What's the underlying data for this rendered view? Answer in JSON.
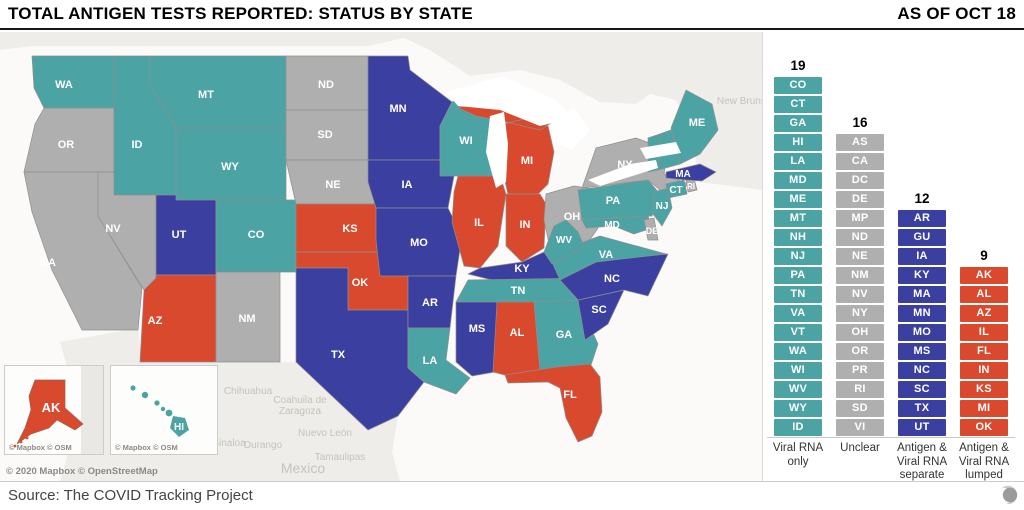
{
  "header": {
    "title": "TOTAL ANTIGEN TESTS REPORTED: STATUS BY STATE",
    "as_of": "AS OF OCT 18"
  },
  "colors": {
    "viral_rna_only": "#4BA3A4",
    "unclear": "#AFAFAF",
    "antigen_viral_separate": "#3B3F9F",
    "antigen_viral_lumped": "#D9492E",
    "water": "#FBFAF8",
    "foreign_land": "#EFEDE9",
    "state_border": "#8f8f8f"
  },
  "legend_columns": [
    {
      "count": "19",
      "label": "Viral RNA only",
      "color_key": "viral_rna_only",
      "states": [
        "CO",
        "CT",
        "GA",
        "HI",
        "LA",
        "MD",
        "ME",
        "MT",
        "NH",
        "NJ",
        "PA",
        "TN",
        "VA",
        "VT",
        "WA",
        "WI",
        "WV",
        "WY",
        "ID"
      ]
    },
    {
      "count": "16",
      "label": "Unclear",
      "color_key": "unclear",
      "states": [
        "AS",
        "CA",
        "DC",
        "DE",
        "MP",
        "ND",
        "NE",
        "NM",
        "NV",
        "NY",
        "OH",
        "OR",
        "PR",
        "RI",
        "SD",
        "VI"
      ]
    },
    {
      "count": "12",
      "label": "Antigen & Viral RNA separate",
      "color_key": "antigen_viral_separate",
      "states": [
        "AR",
        "GU",
        "IA",
        "KY",
        "MA",
        "MN",
        "MO",
        "MS",
        "NC",
        "SC",
        "TX",
        "UT"
      ]
    },
    {
      "count": "9",
      "label": "Antigen & Viral RNA lumped",
      "color_key": "antigen_viral_lumped",
      "states": [
        "AK",
        "AL",
        "AZ",
        "IL",
        "FL",
        "IN",
        "KS",
        "MI",
        "OK"
      ]
    }
  ],
  "map": {
    "attribution": "© 2020 Mapbox © OpenStreetMap",
    "inset_attribution": "© Mapbox © OSM",
    "alaska_label": "AK",
    "hawaii_label": "HI",
    "background_labels": [
      "New Brunsw",
      "Chihuahua",
      "Coahuila de",
      "Zaragoza",
      "Nuevo León",
      "Sinaloa",
      "Durango",
      "Tamaulipas",
      "Mexico"
    ]
  },
  "footer": {
    "source": "Source: The COVID Tracking Project"
  },
  "chart_data": {
    "type": "bar",
    "title": "TOTAL ANTIGEN TESTS REPORTED: STATUS BY STATE",
    "subtitle": "AS OF OCT 18",
    "categories": [
      "Viral RNA only",
      "Unclear",
      "Antigen & Viral RNA separate",
      "Antigen & Viral RNA lumped"
    ],
    "values": [
      19,
      16,
      12,
      9
    ],
    "colors": [
      "#4BA3A4",
      "#AFAFAF",
      "#3B3F9F",
      "#D9492E"
    ],
    "bar_members": {
      "Viral RNA only": [
        "CO",
        "CT",
        "GA",
        "HI",
        "LA",
        "MD",
        "ME",
        "MT",
        "NH",
        "NJ",
        "PA",
        "TN",
        "VA",
        "VT",
        "WA",
        "WI",
        "WV",
        "WY",
        "ID"
      ],
      "Unclear": [
        "AS",
        "CA",
        "DC",
        "DE",
        "MP",
        "ND",
        "NE",
        "NM",
        "NV",
        "NY",
        "OH",
        "OR",
        "PR",
        "RI",
        "SD",
        "VI"
      ],
      "Antigen & Viral RNA separate": [
        "AR",
        "GU",
        "IA",
        "KY",
        "MA",
        "MN",
        "MO",
        "MS",
        "NC",
        "SC",
        "TX",
        "UT"
      ],
      "Antigen & Viral RNA lumped": [
        "AK",
        "AL",
        "AZ",
        "IL",
        "FL",
        "IN",
        "KS",
        "MI",
        "OK"
      ]
    },
    "legend_position": "right",
    "grid": false
  }
}
